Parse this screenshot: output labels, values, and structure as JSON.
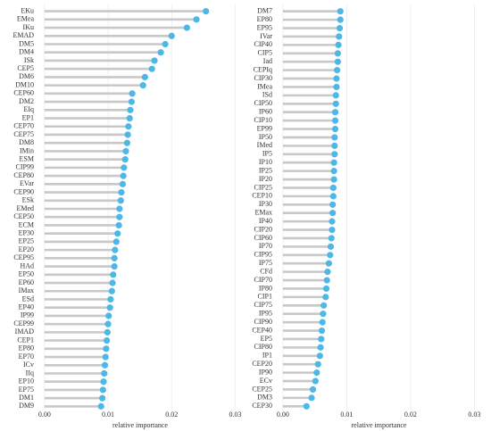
{
  "chart_data": [
    {
      "type": "lollipop",
      "xlabel": "relative importance",
      "color": "#4db8e8",
      "stem_color": "#c8c8c8",
      "grid": true,
      "categories": [
        "EKu",
        "EMea",
        "IKu",
        "EMAD",
        "DM5",
        "DM4",
        "ISk",
        "CEP5",
        "DM6",
        "DM10",
        "CEP60",
        "DM2",
        "EIq",
        "EP1",
        "CEP70",
        "CEP75",
        "DM8",
        "IMin",
        "ESM",
        "CIP99",
        "CEP80",
        "EVar",
        "CEP90",
        "ESk",
        "EMed",
        "CEP50",
        "ECM",
        "EP30",
        "EP25",
        "EP20",
        "CEP95",
        "HAd",
        "EP50",
        "EP60",
        "IMax",
        "ESd",
        "EP40",
        "IP99",
        "CEP99",
        "IMAD",
        "CEP1",
        "EP80",
        "EP70",
        "ICv",
        "IIq",
        "EP10",
        "EP75",
        "DM1",
        "DM9"
      ],
      "values": [
        0.0254,
        0.0239,
        0.0224,
        0.02,
        0.019,
        0.0183,
        0.0173,
        0.0169,
        0.0158,
        0.0155,
        0.0138,
        0.0137,
        0.0135,
        0.0134,
        0.0132,
        0.0131,
        0.013,
        0.0128,
        0.0127,
        0.0125,
        0.0124,
        0.0123,
        0.0121,
        0.012,
        0.0118,
        0.0118,
        0.0117,
        0.0115,
        0.0113,
        0.0111,
        0.011,
        0.011,
        0.0108,
        0.0107,
        0.0106,
        0.0104,
        0.0103,
        0.0101,
        0.01,
        0.0099,
        0.0098,
        0.0097,
        0.0096,
        0.0095,
        0.0094,
        0.0093,
        0.0092,
        0.0091,
        0.0089
      ],
      "xlim": [
        -0.0011,
        0.0312
      ],
      "xticks": [
        {
          "value": 0,
          "label": "0.00"
        },
        0.01,
        0.02,
        0.03
      ]
    },
    {
      "type": "lollipop",
      "xlabel": "relative importance",
      "color": "#4db8e8",
      "stem_color": "#c8c8c8",
      "grid": true,
      "categories": [
        "DM7",
        "EP80",
        "EP95",
        "IVar",
        "CIP40",
        "CIP5",
        "Iad",
        "CEPIq",
        "CIP30",
        "IMea",
        "ISd",
        "CIP50",
        "IP60",
        "CIP10",
        "EP99",
        "IP50",
        "IMed",
        "IP5",
        "IP10",
        "IP25",
        "IP20",
        "CIP25",
        "CEP10",
        "IP30",
        "EMax",
        "IP40",
        "CIP20",
        "CIP60",
        "IP70",
        "CIP95",
        "IP75",
        "CFd",
        "CIP70",
        "IP80",
        "CIP1",
        "CIP75",
        "IP95",
        "CIP90",
        "CEP40",
        "EP5",
        "CIP80",
        "IP1",
        "CEP20",
        "IP90",
        "ECv",
        "CEP25",
        "DM3",
        "CEP30"
      ],
      "values": [
        0.009,
        0.009,
        0.0089,
        0.0088,
        0.0087,
        0.0086,
        0.0086,
        0.0085,
        0.0084,
        0.0084,
        0.0083,
        0.0083,
        0.0082,
        0.0082,
        0.0082,
        0.0081,
        0.0081,
        0.0081,
        0.008,
        0.008,
        0.008,
        0.0079,
        0.0079,
        0.0078,
        0.0078,
        0.0077,
        0.0077,
        0.0076,
        0.0075,
        0.0074,
        0.0072,
        0.007,
        0.0069,
        0.0068,
        0.0067,
        0.0064,
        0.0063,
        0.0062,
        0.0061,
        0.006,
        0.0059,
        0.0058,
        0.0055,
        0.0053,
        0.0051,
        0.0047,
        0.0045,
        0.0037
      ],
      "xlim": [
        -0.0011,
        0.0312
      ],
      "xticks": [
        {
          "value": 0,
          "label": "0.00"
        },
        0.01,
        0.02,
        0.03
      ]
    }
  ]
}
